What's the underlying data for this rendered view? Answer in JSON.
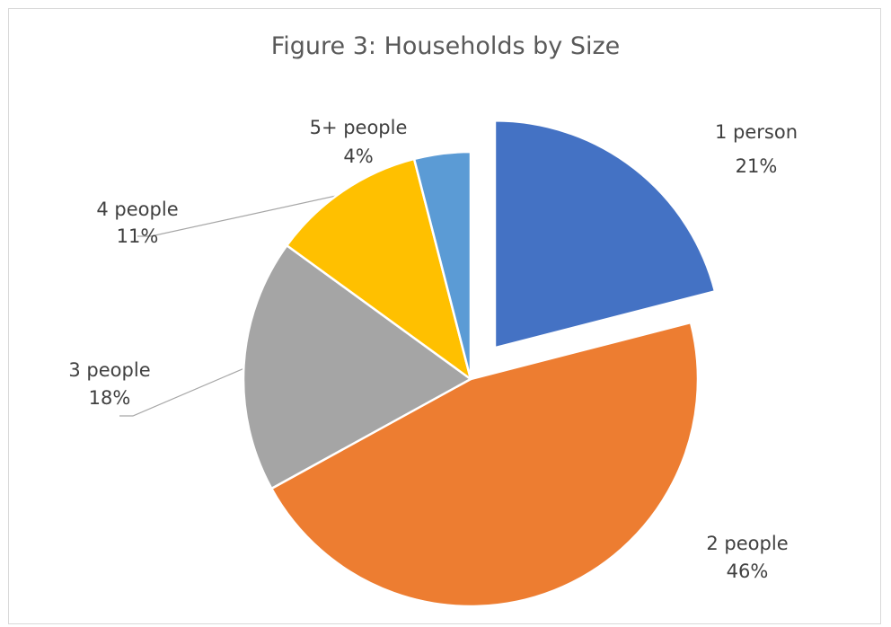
{
  "chart_data": {
    "type": "pie",
    "title": "Figure 3: Households by Size",
    "categories": [
      "1 person",
      "2 people",
      "3 people",
      "4 people",
      "5+ people"
    ],
    "values": [
      21,
      46,
      18,
      11,
      4
    ],
    "value_labels": [
      "21%",
      "46%",
      "18%",
      "11%",
      "4%"
    ],
    "colors": [
      "#4472C4",
      "#ED7D31",
      "#A5A5A5",
      "#FFC000",
      "#5B9BD5"
    ],
    "exploded": [
      "1 person"
    ],
    "legend": "none"
  }
}
